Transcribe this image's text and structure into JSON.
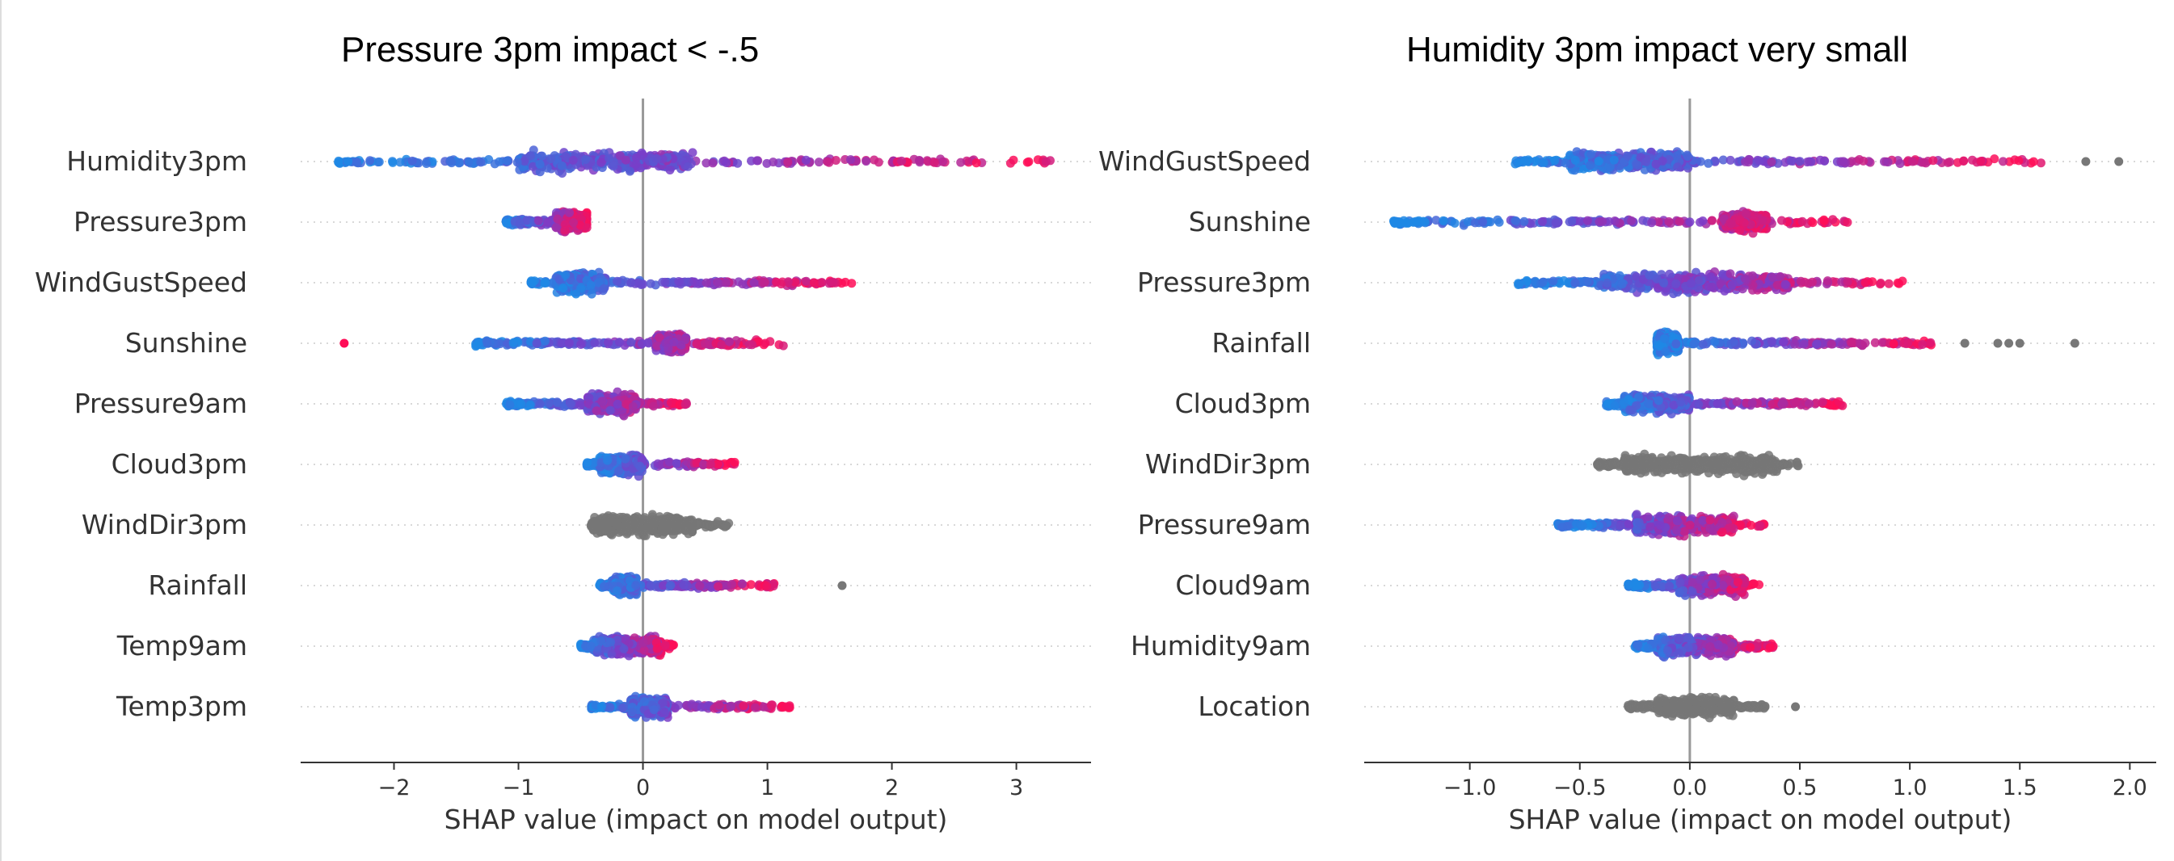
{
  "chart_data": [
    {
      "type": "scatter",
      "subtype": "shap-beeswarm",
      "title": "Pressure 3pm impact < -.5",
      "xlabel": "SHAP value (impact on model output)",
      "xlim": [
        -2.75,
        3.6
      ],
      "xticks": [
        -2,
        -1,
        0,
        1,
        2,
        3
      ],
      "xtick_labels": [
        "−2",
        "−1",
        "0",
        "1",
        "2",
        "3"
      ],
      "features": [
        {
          "name": "Humidity3pm",
          "color": "gradient",
          "min": -2.45,
          "max": 3.35,
          "core": [
            -1.0,
            0.4
          ],
          "tail_max": 3.3,
          "outliers": []
        },
        {
          "name": "Pressure3pm",
          "color": "gradient",
          "min": -1.1,
          "max": -0.45,
          "core": [
            -0.7,
            -0.45
          ],
          "tail_max": -0.45,
          "outliers": []
        },
        {
          "name": "WindGustSpeed",
          "color": "gradient",
          "min": -0.9,
          "max": 1.68,
          "core": [
            -0.7,
            -0.3
          ],
          "tail_max": 1.68,
          "outliers": []
        },
        {
          "name": "Sunshine",
          "color": "gradient",
          "min": -1.35,
          "max": 1.13,
          "core": [
            0.1,
            0.35
          ],
          "tail_max": 1.13,
          "outliers": [
            -2.4
          ]
        },
        {
          "name": "Pressure9am",
          "color": "gradient",
          "min": -1.1,
          "max": 0.38,
          "core": [
            -0.45,
            -0.05
          ],
          "tail_max": 0.38,
          "outliers": []
        },
        {
          "name": "Cloud3pm",
          "color": "gradient",
          "min": -0.45,
          "max": 0.75,
          "core": [
            -0.35,
            0.0
          ],
          "tail_max": 0.75,
          "outliers": []
        },
        {
          "name": "WindDir3pm",
          "color": "gray",
          "min": -0.42,
          "max": 0.7,
          "core": [
            -0.4,
            0.4
          ],
          "tail_max": 0.7,
          "outliers": []
        },
        {
          "name": "Rainfall",
          "color": "gradient",
          "min": -0.35,
          "max": 1.08,
          "core": [
            -0.25,
            -0.05
          ],
          "tail_max": 1.08,
          "outliers": [
            1.6
          ]
        },
        {
          "name": "Temp9am",
          "color": "gradient",
          "min": -0.5,
          "max": 0.25,
          "core": [
            -0.4,
            0.15
          ],
          "tail_max": 0.25,
          "outliers": []
        },
        {
          "name": "Temp3pm",
          "color": "gradient",
          "min": -0.42,
          "max": 1.2,
          "core": [
            -0.1,
            0.2
          ],
          "tail_max": 1.2,
          "outliers": []
        }
      ]
    },
    {
      "type": "scatter",
      "subtype": "shap-beeswarm",
      "title": "Humidity 3pm impact very small",
      "xlabel": "SHAP value (impact on model output)",
      "xlim": [
        -1.48,
        2.12
      ],
      "xticks": [
        -1.0,
        -0.5,
        0.0,
        0.5,
        1.0,
        1.5,
        2.0
      ],
      "xtick_labels": [
        "−1.0",
        "−0.5",
        "0.0",
        "0.5",
        "1.0",
        "1.5",
        "2.0"
      ],
      "features": [
        {
          "name": "WindGustSpeed",
          "color": "gradient",
          "min": -0.8,
          "max": 1.6,
          "core": [
            -0.55,
            0.0
          ],
          "tail_max": 1.6,
          "outliers": [
            1.8,
            1.95
          ]
        },
        {
          "name": "Sunshine",
          "color": "gradient",
          "min": -1.35,
          "max": 0.72,
          "core": [
            0.15,
            0.35
          ],
          "tail_max": 0.72,
          "outliers": []
        },
        {
          "name": "Pressure3pm",
          "color": "gradient",
          "min": -0.78,
          "max": 0.98,
          "core": [
            -0.4,
            0.45
          ],
          "tail_max": 0.98,
          "outliers": []
        },
        {
          "name": "Rainfall",
          "color": "gradient",
          "min": -0.15,
          "max": 1.1,
          "core": [
            -0.15,
            -0.05
          ],
          "tail_max": 1.1,
          "outliers": [
            1.25,
            1.4,
            1.45,
            1.5,
            1.75
          ]
        },
        {
          "name": "Cloud3pm",
          "color": "gradient",
          "min": -0.38,
          "max": 0.7,
          "core": [
            -0.3,
            0.0
          ],
          "tail_max": 0.7,
          "outliers": []
        },
        {
          "name": "WindDir3pm",
          "color": "gray",
          "min": -0.42,
          "max": 0.5,
          "core": [
            -0.3,
            0.4
          ],
          "tail_max": 0.5,
          "outliers": []
        },
        {
          "name": "Pressure9am",
          "color": "gradient",
          "min": -0.6,
          "max": 0.35,
          "core": [
            -0.25,
            0.2
          ],
          "tail_max": 0.35,
          "outliers": []
        },
        {
          "name": "Cloud9am",
          "color": "gradient",
          "min": -0.28,
          "max": 0.32,
          "core": [
            -0.05,
            0.25
          ],
          "tail_max": 0.32,
          "outliers": []
        },
        {
          "name": "Humidity9am",
          "color": "gradient",
          "min": -0.25,
          "max": 0.38,
          "core": [
            -0.15,
            0.2
          ],
          "tail_max": 0.38,
          "outliers": []
        },
        {
          "name": "Location",
          "color": "gray",
          "min": -0.28,
          "max": 0.48,
          "core": [
            -0.15,
            0.2
          ],
          "tail_max": 0.35,
          "outliers": [
            0.48
          ]
        }
      ]
    }
  ],
  "colors": {
    "low": "#1E88E5",
    "high": "#FF0D57",
    "gray": "#777777",
    "axis": "#333333",
    "zero": "#999999",
    "grid": "#CCCCCC"
  }
}
